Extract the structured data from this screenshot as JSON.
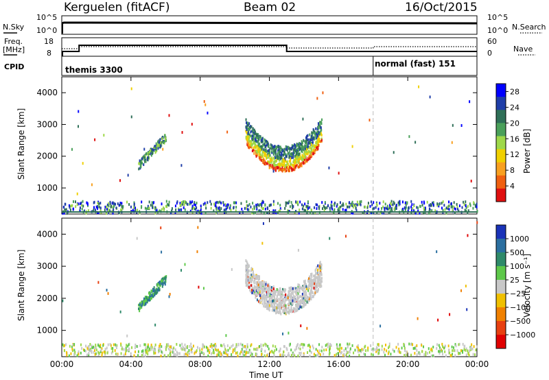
{
  "header": {
    "station": "Kerguelen (fitACF)",
    "beam": "Beam 02",
    "date": "16/Oct/2015"
  },
  "top_panels": {
    "nsky_label": "N.Sky",
    "nsky_ticks": [
      "10^5",
      "10^0"
    ],
    "nsearch_label": "N.Search",
    "nsearch_ticks": [
      "10^5",
      "10^0"
    ],
    "freq_label_1": "Freq.",
    "freq_label_2": "[MHz]",
    "freq_ticks": [
      "18",
      "8"
    ],
    "nave_label": "Nave",
    "nave_ticks": [
      "60",
      "0"
    ],
    "cpid_label": "CPID",
    "cpid_segments": [
      {
        "name": "themis 3300",
        "start_hour": 0,
        "end_hour": 18
      },
      {
        "name": "normal (fast) 151",
        "start_hour": 18,
        "end_hour": 24
      }
    ]
  },
  "chart_data": [
    {
      "type": "heatmap",
      "title": "",
      "xlabel": "Time UT",
      "ylabel": "Slant Range [km]",
      "xlim": [
        0,
        24
      ],
      "ylim": [
        180,
        4500
      ],
      "x_ticks": [
        "00:00",
        "04:00",
        "08:00",
        "12:00",
        "16:00",
        "20:00",
        "00:00"
      ],
      "y_ticks": [
        1000,
        2000,
        3000,
        4000
      ],
      "colorbar": {
        "label": "Power [dB]",
        "ticks": [
          4,
          8,
          12,
          16,
          20,
          24,
          28
        ],
        "range": [
          0,
          30
        ],
        "colors": [
          "#0000ff",
          "#1f3ea8",
          "#2f6f58",
          "#4aa05a",
          "#9ed84a",
          "#f0d000",
          "#f8a020",
          "#f06010",
          "#e01010"
        ]
      }
    },
    {
      "type": "heatmap",
      "title": "",
      "xlabel": "Time UT",
      "ylabel": "Slant Range [km]",
      "xlim": [
        0,
        24
      ],
      "ylim": [
        180,
        4500
      ],
      "x_ticks": [
        "00:00",
        "04:00",
        "08:00",
        "12:00",
        "16:00",
        "20:00",
        "00:00"
      ],
      "y_ticks": [
        1000,
        2000,
        3000,
        4000
      ],
      "colorbar": {
        "label": "Velocity [m s⁻¹]",
        "ticks": [
          "1000",
          "500",
          "100",
          "25",
          "−25",
          "−100",
          "−500",
          "−1000"
        ],
        "colors": [
          "#1a33b8",
          "#2b6fa0",
          "#2f8a6a",
          "#5ec84a",
          "#c8c8c8",
          "#f0c000",
          "#f08000",
          "#e84010",
          "#e00000"
        ]
      }
    }
  ]
}
